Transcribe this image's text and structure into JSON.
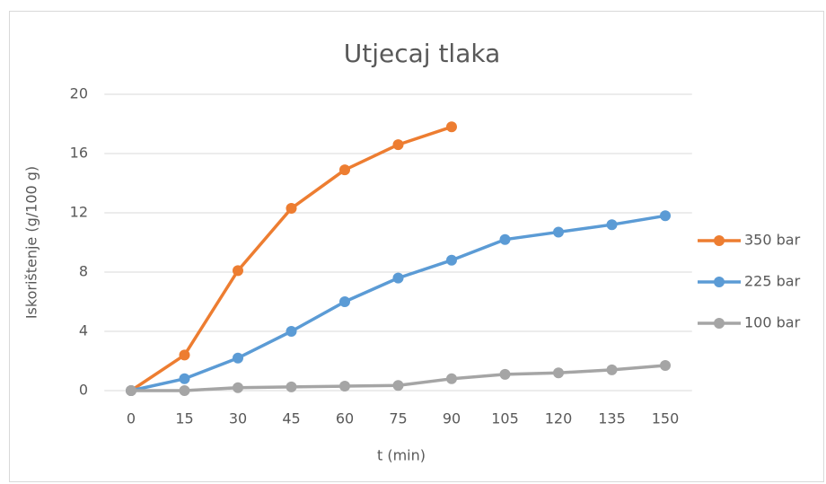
{
  "chart_data": {
    "type": "line",
    "title": "Utjecaj tlaka",
    "x_label": "t (min)",
    "y_label": "Iskorištenje (g/100 g)",
    "categories": [
      "0",
      "15",
      "30",
      "45",
      "60",
      "75",
      "90",
      "105",
      "120",
      "135",
      "150"
    ],
    "series": [
      {
        "name": "350 bar",
        "color": "#ed7d31",
        "values": [
          0,
          2.4,
          8.1,
          12.3,
          14.9,
          16.6,
          17.8,
          null,
          null,
          null,
          null
        ]
      },
      {
        "name": "225 bar",
        "color": "#5b9bd5",
        "values": [
          0,
          0.8,
          2.2,
          4.0,
          6.0,
          7.6,
          8.8,
          10.2,
          10.7,
          11.2,
          11.8
        ]
      },
      {
        "name": "100 bar",
        "color": "#a5a5a5",
        "values": [
          0,
          0,
          0.2,
          0.25,
          0.3,
          0.35,
          0.8,
          1.1,
          1.2,
          1.4,
          1.7
        ]
      }
    ],
    "ylim": [
      0,
      20
    ],
    "yticks": [
      0,
      4,
      8,
      12,
      16,
      20
    ],
    "grid": true,
    "legend": "right"
  }
}
